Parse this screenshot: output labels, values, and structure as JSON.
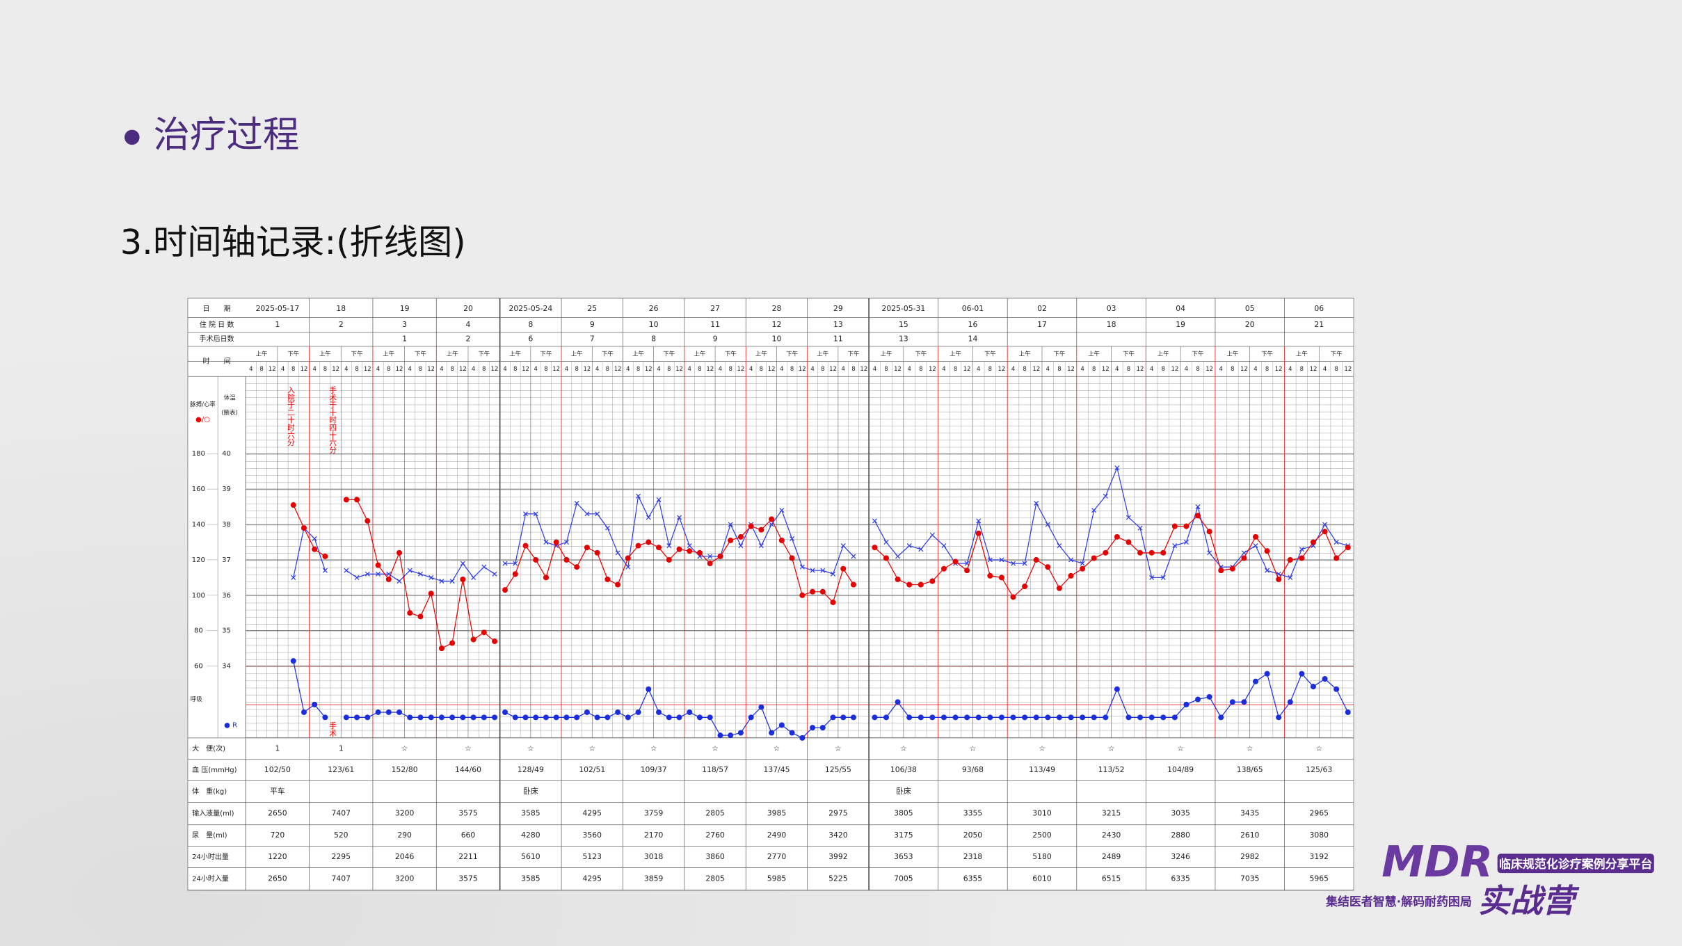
{
  "slide": {
    "title": "治疗过程",
    "subtitle": "3.时间轴记录:(折线图)"
  },
  "record": {
    "row_labels": {
      "date": "日　　期",
      "hospital_day": "住 院 日 数",
      "post_op_day": "手术后日数",
      "time": "时　　间",
      "stool": "大　便(次)",
      "bp": "血 压(mmHg)",
      "weight": "体　重(kg)",
      "intake_fluid": "输入液量(ml)",
      "urine": "尿　量(ml)",
      "output_24h": "24小时出量",
      "intake_24h": "24小时入量"
    },
    "legend": {
      "pulse": "脉搏/心率",
      "pulse_symbol": "●/○",
      "temp": "体温",
      "temp_note": "(腋表)",
      "resp": "呼吸",
      "resp_symbol": "● R"
    },
    "half_days": [
      "上午",
      "下午"
    ],
    "time_slots": [
      "4",
      "8",
      "12",
      "4",
      "8",
      "12"
    ],
    "pulse_lim": [
      60,
      180
    ],
    "pulse_ticks": [
      180,
      160,
      140,
      120,
      100,
      80,
      60
    ],
    "temp_lim": [
      34,
      40
    ],
    "temp_ticks": [
      40,
      39,
      38,
      37,
      36,
      35,
      34
    ],
    "resp_lim": [
      12,
      40
    ],
    "annotations": [
      "入院于二十时六分",
      "手术于十时四十六分",
      "手术"
    ],
    "panels": [
      {
        "days": [
          {
            "date": "2025-05-17",
            "hospital_day": "1",
            "stool": "1",
            "bp": "102/50",
            "weight": "平车",
            "intake_fluid": 2650,
            "urine": 720,
            "output_24h": 1220,
            "intake_24h": 2650,
            "temp": [
              null,
              null,
              null,
              null,
              36.5,
              37.9
            ],
            "pulse": [
              null,
              null,
              null,
              null,
              151,
              138
            ],
            "resp": [
              null,
              null,
              null,
              null,
              42,
              22
            ]
          },
          {
            "date": "18",
            "hospital_day": "2",
            "stool": "1",
            "bp": "123/61",
            "intake_fluid": 7407,
            "urine": 520,
            "output_24h": 2295,
            "intake_24h": 7407,
            "temp": [
              37.6,
              36.7,
              null,
              36.7,
              36.5,
              36.6
            ],
            "pulse": [
              126,
              122,
              null,
              154,
              154,
              142
            ],
            "resp": [
              25,
              20,
              null,
              20,
              20,
              20
            ]
          },
          {
            "date": "19",
            "hospital_day": "3",
            "post_op_day": "1",
            "stool": "☆",
            "bp": "152/80",
            "intake_fluid": 3200,
            "urine": 290,
            "output_24h": 2046,
            "intake_24h": 3200,
            "temp": [
              36.6,
              36.6,
              36.4,
              36.7,
              36.6,
              36.5
            ],
            "pulse": [
              117,
              109,
              124,
              90,
              88,
              101
            ],
            "resp": [
              22,
              22,
              22,
              20,
              20,
              20
            ]
          },
          {
            "date": "20",
            "hospital_day": "4",
            "post_op_day": "2",
            "stool": "☆",
            "bp": "144/60",
            "intake_fluid": 3575,
            "urine": 660,
            "output_24h": 2211,
            "intake_24h": 3575,
            "temp": [
              36.4,
              36.4,
              36.9,
              36.5,
              36.8,
              36.6
            ],
            "pulse": [
              70,
              73,
              109,
              75,
              79,
              74
            ],
            "resp": [
              20,
              20,
              20,
              20,
              20,
              20
            ]
          }
        ]
      },
      {
        "days": [
          {
            "date": "2025-05-24",
            "hospital_day": "8",
            "post_op_day": "6",
            "stool": "☆",
            "bp": "128/49",
            "weight": "卧床",
            "intake_fluid": 3585,
            "urine": 4280,
            "output_24h": 5610,
            "intake_24h": 3585,
            "temp": [
              36.9,
              36.9,
              38.3,
              38.3,
              37.5,
              37.4
            ],
            "pulse": [
              103,
              112,
              128,
              120,
              110,
              130
            ],
            "resp": [
              22,
              20,
              20,
              20,
              20,
              20
            ]
          },
          {
            "date": "25",
            "hospital_day": "9",
            "post_op_day": "7",
            "stool": "☆",
            "bp": "102/51",
            "intake_fluid": 4295,
            "urine": 3560,
            "output_24h": 5123,
            "intake_24h": 4295,
            "temp": [
              37.5,
              38.6,
              38.3,
              38.3,
              37.9,
              37.2
            ],
            "pulse": [
              120,
              116,
              127,
              124,
              109,
              106
            ],
            "resp": [
              20,
              20,
              22,
              20,
              20,
              22
            ]
          },
          {
            "date": "26",
            "hospital_day": "10",
            "post_op_day": "8",
            "stool": "☆",
            "bp": "109/37",
            "intake_fluid": 3759,
            "urine": 2170,
            "output_24h": 3018,
            "intake_24h": 3859,
            "temp": [
              36.8,
              38.8,
              38.2,
              38.7,
              37.4,
              38.2
            ],
            "pulse": [
              121,
              128,
              130,
              127,
              120,
              126
            ],
            "resp": [
              20,
              22,
              31,
              22,
              20,
              20
            ]
          },
          {
            "date": "27",
            "hospital_day": "11",
            "post_op_day": "9",
            "stool": "☆",
            "bp": "118/57",
            "intake_fluid": 2805,
            "urine": 2760,
            "output_24h": 3860,
            "intake_24h": 2805,
            "temp": [
              37.4,
              37.1,
              37.1,
              37.1,
              38.0,
              37.4
            ],
            "pulse": [
              125,
              124,
              118,
              122,
              131,
              133
            ],
            "resp": [
              22,
              20,
              20,
              13,
              13,
              14
            ]
          },
          {
            "date": "28",
            "hospital_day": "12",
            "post_op_day": "10",
            "stool": "☆",
            "bp": "137/45",
            "intake_fluid": 3985,
            "urine": 2490,
            "output_24h": 2770,
            "intake_24h": 5985,
            "temp": [
              38.0,
              37.4,
              38.0,
              38.4,
              37.6,
              36.8
            ],
            "pulse": [
              139,
              137,
              143,
              131,
              121,
              100
            ],
            "resp": [
              20,
              24,
              14,
              17,
              14,
              12
            ]
          },
          {
            "date": "29",
            "hospital_day": "13",
            "post_op_day": "11",
            "stool": "☆",
            "bp": "125/55",
            "intake_fluid": 2975,
            "urine": 3420,
            "output_24h": 3992,
            "intake_24h": 5225,
            "temp": [
              36.7,
              36.7,
              36.6,
              37.4,
              37.1,
              null
            ],
            "pulse": [
              102,
              102,
              96,
              115,
              106,
              null
            ],
            "resp": [
              16,
              16,
              20,
              20,
              20,
              null
            ]
          }
        ]
      },
      {
        "days": [
          {
            "date": "2025-05-31",
            "hospital_day": "15",
            "post_op_day": "13",
            "stool": "☆",
            "bp": "106/38",
            "weight": "卧床",
            "intake_fluid": 3805,
            "urine": 3175,
            "output_24h": 3653,
            "intake_24h": 7005,
            "temp": [
              38.1,
              37.5,
              37.1,
              37.4,
              37.3,
              37.7
            ],
            "pulse": [
              127,
              121,
              109,
              106,
              106,
              108
            ],
            "resp": [
              20,
              20,
              26,
              20,
              20,
              20
            ]
          },
          {
            "date": "06-01",
            "hospital_day": "16",
            "post_op_day": "14",
            "stool": "☆",
            "bp": "93/68",
            "intake_fluid": 3355,
            "urine": 2050,
            "output_24h": 2318,
            "intake_24h": 6355,
            "temp": [
              37.4,
              36.9,
              36.9,
              38.1,
              37.0,
              37.0
            ],
            "pulse": [
              115,
              119,
              114,
              135,
              111,
              110
            ],
            "resp": [
              20,
              20,
              20,
              20,
              20,
              20
            ]
          },
          {
            "date": "02",
            "hospital_day": "17",
            "stool": "☆",
            "bp": "113/49",
            "intake_fluid": 3010,
            "urine": 2500,
            "output_24h": 5180,
            "intake_24h": 6010,
            "temp": [
              36.9,
              36.9,
              38.6,
              38.0,
              37.4,
              37.0
            ],
            "pulse": [
              99,
              105,
              120,
              116,
              104,
              111
            ],
            "resp": [
              20,
              20,
              20,
              20,
              20,
              20
            ]
          },
          {
            "date": "03",
            "hospital_day": "18",
            "stool": "☆",
            "bp": "113/52",
            "intake_fluid": 3215,
            "urine": 2430,
            "output_24h": 2489,
            "intake_24h": 6515,
            "temp": [
              36.9,
              38.4,
              38.8,
              39.6,
              38.2,
              37.9
            ],
            "pulse": [
              115,
              121,
              124,
              133,
              130,
              124
            ],
            "resp": [
              20,
              20,
              20,
              31,
              20,
              20
            ]
          },
          {
            "date": "04",
            "hospital_day": "19",
            "stool": "☆",
            "bp": "104/89",
            "intake_fluid": 3035,
            "urine": 2880,
            "output_24h": 3246,
            "intake_24h": 6335,
            "temp": [
              36.5,
              36.5,
              37.4,
              37.5,
              38.5,
              37.2
            ],
            "pulse": [
              124,
              124,
              139,
              139,
              145,
              136
            ],
            "resp": [
              20,
              20,
              20,
              25,
              27,
              28
            ]
          },
          {
            "date": "05",
            "hospital_day": "20",
            "stool": "☆",
            "bp": "138/65",
            "intake_fluid": 3435,
            "urine": 2610,
            "output_24h": 2982,
            "intake_24h": 7035,
            "temp": [
              36.8,
              36.8,
              37.2,
              37.4,
              36.7,
              36.6
            ],
            "pulse": [
              114,
              115,
              121,
              133,
              125,
              109
            ],
            "resp": [
              20,
              26,
              26,
              34,
              37,
              20
            ]
          },
          {
            "date": "06",
            "hospital_day": "21",
            "stool": "☆",
            "bp": "125/63",
            "intake_fluid": 2965,
            "urine": 3080,
            "output_24h": 3192,
            "intake_24h": 5965,
            "temp": [
              36.5,
              37.3,
              37.4,
              38.0,
              37.5,
              37.4
            ],
            "pulse": [
              120,
              121,
              130,
              136,
              121,
              127
            ],
            "resp": [
              26,
              37,
              32,
              35,
              31,
              22
            ]
          }
        ]
      }
    ]
  },
  "logo": {
    "brand": "MDR",
    "name": "实战营",
    "tagline": "临床规范化诊疗案例分享平台",
    "motto": "集结医者智慧·解码耐药困局"
  }
}
